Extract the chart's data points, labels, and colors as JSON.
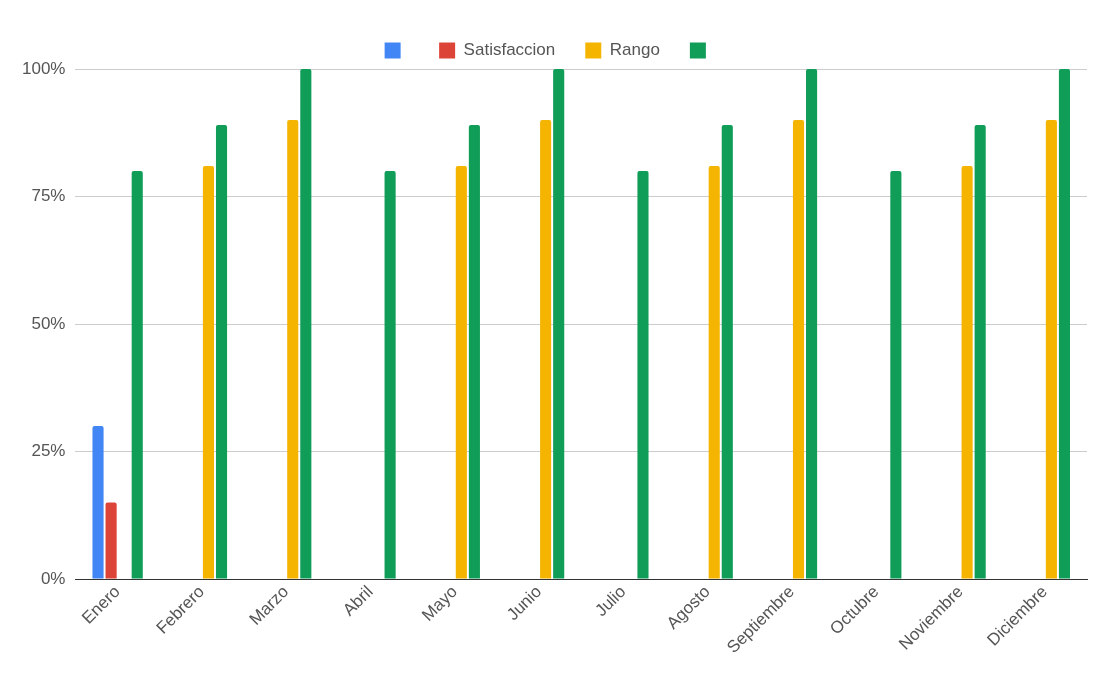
{
  "chart_data": {
    "type": "bar",
    "categories": [
      "Enero",
      "Febrero",
      "Marzo",
      "Abril",
      "Mayo",
      "Junio",
      "Julio",
      "Agosto",
      "Septiembre",
      "Octubre",
      "Noviembre",
      "Diciembre"
    ],
    "series": [
      {
        "color": "#4285f4",
        "values": [
          30,
          null,
          null,
          null,
          null,
          null,
          null,
          null,
          null,
          null,
          null,
          null
        ]
      },
      {
        "name": "Satisfaccion",
        "color": "#db4437",
        "values": [
          15,
          null,
          null,
          null,
          null,
          null,
          null,
          null,
          null,
          null,
          null,
          null
        ]
      },
      {
        "name": "Rango",
        "color": "#f4b400",
        "values": [
          null,
          81,
          90,
          null,
          81,
          90,
          null,
          81,
          90,
          null,
          81,
          90
        ]
      },
      {
        "color": "#0f9d58",
        "values": [
          80,
          89,
          100,
          80,
          89,
          100,
          80,
          89,
          100,
          80,
          89,
          100
        ]
      }
    ],
    "ylim": [
      0,
      100
    ],
    "yticks": [
      {
        "value": 0,
        "label": "0%"
      },
      {
        "value": 25,
        "label": "25%"
      },
      {
        "value": 50,
        "label": "50%"
      },
      {
        "value": 75,
        "label": "75%"
      },
      {
        "value": 100,
        "label": "100%"
      }
    ],
    "grid": "y",
    "legend": "top"
  }
}
